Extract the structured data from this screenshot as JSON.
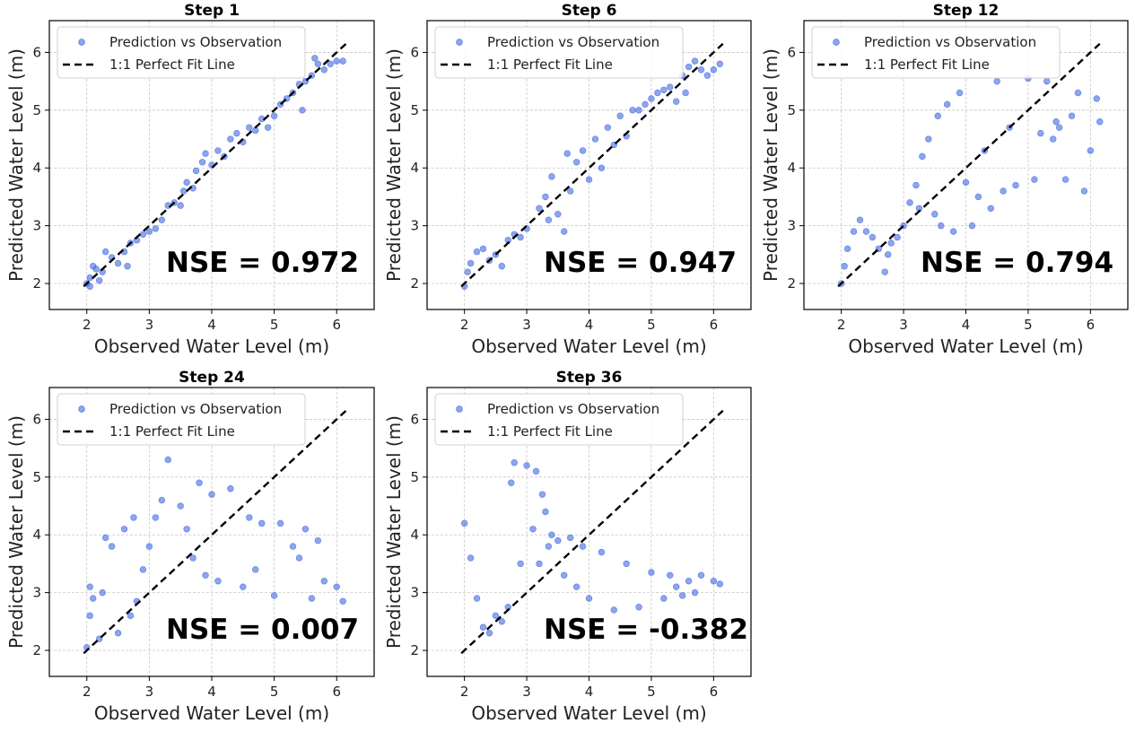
{
  "chart_data": [
    {
      "type": "scatter",
      "title": "Step 1",
      "xlabel": "Observed Water Level (m)",
      "ylabel": "Predicted Water Level (m)",
      "xlim": [
        1.4,
        6.6
      ],
      "ylim": [
        1.55,
        6.55
      ],
      "xticks": [
        2,
        3,
        4,
        5,
        6
      ],
      "yticks": [
        2,
        3,
        4,
        5,
        6
      ],
      "grid": true,
      "legend": "top-left",
      "annotation": "NSE = 0.972",
      "series": [
        {
          "name": "Prediction vs Observation",
          "color": "#4169e1",
          "points": [
            [
              2.0,
              2.0
            ],
            [
              2.05,
              2.1
            ],
            [
              2.05,
              1.95
            ],
            [
              2.1,
              2.3
            ],
            [
              2.15,
              2.25
            ],
            [
              2.2,
              2.05
            ],
            [
              2.25,
              2.2
            ],
            [
              2.3,
              2.55
            ],
            [
              2.4,
              2.45
            ],
            [
              2.5,
              2.35
            ],
            [
              2.6,
              2.55
            ],
            [
              2.65,
              2.3
            ],
            [
              2.7,
              2.7
            ],
            [
              2.8,
              2.75
            ],
            [
              2.9,
              2.85
            ],
            [
              3.0,
              2.9
            ],
            [
              3.1,
              2.95
            ],
            [
              3.2,
              3.1
            ],
            [
              3.3,
              3.35
            ],
            [
              3.4,
              3.4
            ],
            [
              3.5,
              3.35
            ],
            [
              3.55,
              3.6
            ],
            [
              3.6,
              3.75
            ],
            [
              3.7,
              3.65
            ],
            [
              3.75,
              3.95
            ],
            [
              3.85,
              4.1
            ],
            [
              3.9,
              4.25
            ],
            [
              4.0,
              4.05
            ],
            [
              4.1,
              4.3
            ],
            [
              4.2,
              4.2
            ],
            [
              4.3,
              4.5
            ],
            [
              4.4,
              4.6
            ],
            [
              4.5,
              4.45
            ],
            [
              4.6,
              4.7
            ],
            [
              4.7,
              4.65
            ],
            [
              4.8,
              4.85
            ],
            [
              4.9,
              4.7
            ],
            [
              5.0,
              4.9
            ],
            [
              5.1,
              5.1
            ],
            [
              5.2,
              5.2
            ],
            [
              5.3,
              5.3
            ],
            [
              5.4,
              5.45
            ],
            [
              5.45,
              5.0
            ],
            [
              5.5,
              5.5
            ],
            [
              5.6,
              5.6
            ],
            [
              5.7,
              5.8
            ],
            [
              5.8,
              5.7
            ],
            [
              5.9,
              5.8
            ],
            [
              6.0,
              5.85
            ],
            [
              6.1,
              5.85
            ],
            [
              5.65,
              5.9
            ]
          ]
        }
      ],
      "reference_line": {
        "name": "1:1 Perfect Fit Line",
        "x": [
          1.95,
          6.15
        ],
        "y": [
          1.95,
          6.15
        ]
      }
    },
    {
      "type": "scatter",
      "title": "Step 6",
      "xlabel": "Observed Water Level (m)",
      "ylabel": "Predicted Water Level (m)",
      "xlim": [
        1.4,
        6.6
      ],
      "ylim": [
        1.55,
        6.55
      ],
      "xticks": [
        2,
        3,
        4,
        5,
        6
      ],
      "yticks": [
        2,
        3,
        4,
        5,
        6
      ],
      "grid": true,
      "legend": "top-left",
      "annotation": "NSE = 0.947",
      "series": [
        {
          "name": "Prediction vs Observation",
          "color": "#4169e1",
          "points": [
            [
              2.0,
              1.95
            ],
            [
              2.05,
              2.2
            ],
            [
              2.1,
              2.35
            ],
            [
              2.2,
              2.55
            ],
            [
              2.3,
              2.6
            ],
            [
              2.4,
              2.4
            ],
            [
              2.5,
              2.5
            ],
            [
              2.6,
              2.3
            ],
            [
              2.7,
              2.75
            ],
            [
              2.8,
              2.85
            ],
            [
              2.9,
              2.8
            ],
            [
              3.0,
              2.95
            ],
            [
              3.2,
              3.3
            ],
            [
              3.3,
              3.5
            ],
            [
              3.35,
              3.1
            ],
            [
              3.4,
              3.85
            ],
            [
              3.5,
              3.2
            ],
            [
              3.6,
              2.9
            ],
            [
              3.65,
              4.25
            ],
            [
              3.7,
              3.6
            ],
            [
              3.8,
              4.1
            ],
            [
              3.9,
              4.3
            ],
            [
              4.0,
              3.8
            ],
            [
              4.1,
              4.5
            ],
            [
              4.2,
              4.0
            ],
            [
              4.3,
              4.7
            ],
            [
              4.4,
              4.4
            ],
            [
              4.5,
              4.9
            ],
            [
              4.6,
              4.55
            ],
            [
              4.7,
              5.0
            ],
            [
              4.8,
              5.0
            ],
            [
              4.9,
              5.1
            ],
            [
              5.0,
              5.2
            ],
            [
              5.1,
              5.3
            ],
            [
              5.2,
              5.35
            ],
            [
              5.3,
              5.4
            ],
            [
              5.4,
              5.15
            ],
            [
              5.5,
              5.6
            ],
            [
              5.6,
              5.75
            ],
            [
              5.7,
              5.85
            ],
            [
              5.8,
              5.7
            ],
            [
              5.9,
              5.6
            ],
            [
              6.0,
              5.7
            ],
            [
              6.1,
              5.8
            ],
            [
              5.55,
              5.3
            ]
          ]
        }
      ],
      "reference_line": {
        "name": "1:1 Perfect Fit Line",
        "x": [
          1.95,
          6.15
        ],
        "y": [
          1.95,
          6.15
        ]
      }
    },
    {
      "type": "scatter",
      "title": "Step 12",
      "xlabel": "Observed Water Level (m)",
      "ylabel": "Predicted Water Level (m)",
      "xlim": [
        1.4,
        6.6
      ],
      "ylim": [
        1.55,
        6.55
      ],
      "xticks": [
        2,
        3,
        4,
        5,
        6
      ],
      "yticks": [
        2,
        3,
        4,
        5,
        6
      ],
      "grid": true,
      "legend": "top-left",
      "annotation": "NSE = 0.794",
      "series": [
        {
          "name": "Prediction vs Observation",
          "color": "#4169e1",
          "points": [
            [
              2.0,
              2.0
            ],
            [
              2.05,
              2.3
            ],
            [
              2.1,
              2.6
            ],
            [
              2.2,
              2.9
            ],
            [
              2.3,
              3.1
            ],
            [
              2.4,
              2.9
            ],
            [
              2.5,
              2.8
            ],
            [
              2.6,
              2.6
            ],
            [
              2.7,
              2.2
            ],
            [
              2.75,
              2.5
            ],
            [
              2.8,
              2.7
            ],
            [
              2.9,
              2.8
            ],
            [
              3.0,
              3.0
            ],
            [
              3.1,
              3.4
            ],
            [
              3.2,
              3.7
            ],
            [
              3.25,
              3.3
            ],
            [
              3.3,
              4.2
            ],
            [
              3.4,
              4.5
            ],
            [
              3.5,
              3.2
            ],
            [
              3.55,
              4.9
            ],
            [
              3.6,
              3.0
            ],
            [
              3.7,
              5.1
            ],
            [
              3.8,
              2.9
            ],
            [
              3.9,
              5.3
            ],
            [
              4.0,
              3.75
            ],
            [
              4.1,
              3.0
            ],
            [
              4.2,
              3.5
            ],
            [
              4.3,
              4.3
            ],
            [
              4.4,
              3.3
            ],
            [
              4.5,
              5.5
            ],
            [
              4.6,
              3.6
            ],
            [
              4.7,
              4.7
            ],
            [
              4.8,
              3.7
            ],
            [
              5.0,
              5.55
            ],
            [
              5.1,
              3.8
            ],
            [
              5.2,
              4.6
            ],
            [
              5.3,
              5.5
            ],
            [
              5.4,
              4.5
            ],
            [
              5.45,
              4.8
            ],
            [
              5.5,
              4.7
            ],
            [
              5.6,
              3.8
            ],
            [
              5.7,
              4.9
            ],
            [
              5.8,
              5.3
            ],
            [
              5.9,
              3.6
            ],
            [
              6.0,
              4.3
            ],
            [
              6.1,
              5.2
            ],
            [
              6.15,
              4.8
            ]
          ]
        }
      ],
      "reference_line": {
        "name": "1:1 Perfect Fit Line",
        "x": [
          1.95,
          6.15
        ],
        "y": [
          1.95,
          6.15
        ]
      }
    },
    {
      "type": "scatter",
      "title": "Step 24",
      "xlabel": "Observed Water Level (m)",
      "ylabel": "Predicted Water Level (m)",
      "xlim": [
        1.4,
        6.6
      ],
      "ylim": [
        1.55,
        6.55
      ],
      "xticks": [
        2,
        3,
        4,
        5,
        6
      ],
      "yticks": [
        2,
        3,
        4,
        5,
        6
      ],
      "grid": true,
      "legend": "top-left",
      "annotation": "NSE = 0.007",
      "series": [
        {
          "name": "Prediction vs Observation",
          "color": "#4169e1",
          "points": [
            [
              2.0,
              2.05
            ],
            [
              2.05,
              2.6
            ],
            [
              2.05,
              3.1
            ],
            [
              2.1,
              2.9
            ],
            [
              2.2,
              2.2
            ],
            [
              2.25,
              3.0
            ],
            [
              2.3,
              3.95
            ],
            [
              2.4,
              3.8
            ],
            [
              2.5,
              2.3
            ],
            [
              2.6,
              4.1
            ],
            [
              2.7,
              2.6
            ],
            [
              2.75,
              4.3
            ],
            [
              2.8,
              2.85
            ],
            [
              2.9,
              3.4
            ],
            [
              3.0,
              3.8
            ],
            [
              3.1,
              4.3
            ],
            [
              3.2,
              4.6
            ],
            [
              3.3,
              5.3
            ],
            [
              3.4,
              5.8
            ],
            [
              3.5,
              4.5
            ],
            [
              3.6,
              4.1
            ],
            [
              3.7,
              3.6
            ],
            [
              3.8,
              4.9
            ],
            [
              3.9,
              3.3
            ],
            [
              4.0,
              4.7
            ],
            [
              4.1,
              3.2
            ],
            [
              4.3,
              4.8
            ],
            [
              4.5,
              3.1
            ],
            [
              4.6,
              4.3
            ],
            [
              4.7,
              3.4
            ],
            [
              4.8,
              4.2
            ],
            [
              5.0,
              2.95
            ],
            [
              5.1,
              4.2
            ],
            [
              5.3,
              3.8
            ],
            [
              5.4,
              3.6
            ],
            [
              5.5,
              4.1
            ],
            [
              5.6,
              2.9
            ],
            [
              5.7,
              3.9
            ],
            [
              5.8,
              3.2
            ],
            [
              6.0,
              3.1
            ],
            [
              6.1,
              2.85
            ]
          ]
        }
      ],
      "reference_line": {
        "name": "1:1 Perfect Fit Line",
        "x": [
          1.95,
          6.15
        ],
        "y": [
          1.95,
          6.15
        ]
      }
    },
    {
      "type": "scatter",
      "title": "Step 36",
      "xlabel": "Observed Water Level (m)",
      "ylabel": "Predicted Water Level (m)",
      "xlim": [
        1.4,
        6.6
      ],
      "ylim": [
        1.55,
        6.55
      ],
      "xticks": [
        2,
        3,
        4,
        5,
        6
      ],
      "yticks": [
        2,
        3,
        4,
        5,
        6
      ],
      "grid": true,
      "legend": "top-left",
      "annotation": "NSE = -0.382",
      "series": [
        {
          "name": "Prediction vs Observation",
          "color": "#4169e1",
          "points": [
            [
              2.0,
              4.2
            ],
            [
              2.1,
              3.6
            ],
            [
              2.2,
              2.9
            ],
            [
              2.3,
              2.4
            ],
            [
              2.4,
              2.3
            ],
            [
              2.5,
              2.6
            ],
            [
              2.6,
              2.5
            ],
            [
              2.7,
              2.75
            ],
            [
              2.75,
              4.9
            ],
            [
              2.8,
              5.25
            ],
            [
              2.9,
              3.5
            ],
            [
              3.0,
              5.2
            ],
            [
              3.1,
              4.1
            ],
            [
              3.15,
              5.1
            ],
            [
              3.2,
              3.5
            ],
            [
              3.25,
              4.7
            ],
            [
              3.3,
              4.4
            ],
            [
              3.35,
              3.8
            ],
            [
              3.4,
              4.0
            ],
            [
              3.5,
              3.9
            ],
            [
              3.6,
              3.3
            ],
            [
              3.7,
              3.95
            ],
            [
              3.8,
              3.1
            ],
            [
              3.9,
              3.8
            ],
            [
              4.0,
              2.9
            ],
            [
              4.2,
              3.7
            ],
            [
              4.4,
              2.7
            ],
            [
              4.6,
              3.5
            ],
            [
              4.8,
              2.75
            ],
            [
              5.0,
              3.35
            ],
            [
              5.2,
              2.9
            ],
            [
              5.3,
              3.3
            ],
            [
              5.4,
              3.1
            ],
            [
              5.5,
              2.95
            ],
            [
              5.6,
              3.2
            ],
            [
              5.7,
              3.0
            ],
            [
              5.8,
              3.3
            ],
            [
              6.0,
              3.2
            ],
            [
              6.1,
              3.15
            ]
          ]
        }
      ],
      "reference_line": {
        "name": "1:1 Perfect Fit Line",
        "x": [
          1.95,
          6.15
        ],
        "y": [
          1.95,
          6.15
        ]
      }
    }
  ]
}
